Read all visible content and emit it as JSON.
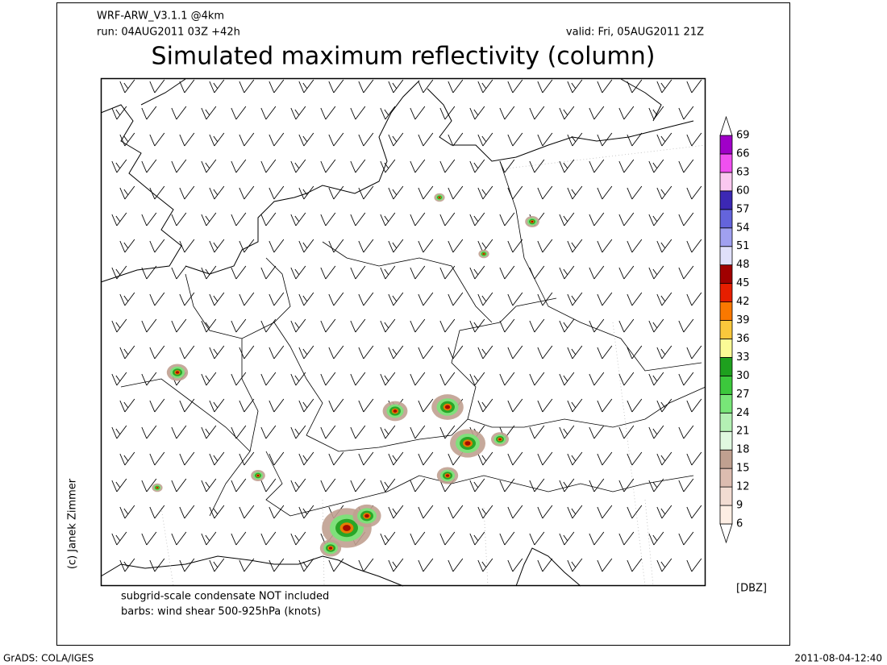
{
  "header": {
    "model": "WRF-ARW_V3.1.1 @4km",
    "run": "run: 04AUG2011 03Z +42h",
    "valid": "valid: Fri, 05AUG2011 21Z",
    "title": "Simulated maximum reflectivity (column)"
  },
  "notes": [
    "subgrid-scale condensate NOT included",
    "barbs: wind shear 500-925hPa (knots)"
  ],
  "credit": "(c) Janek Zimmer",
  "colorbar": {
    "unit": "[DBZ]",
    "levels": [
      6,
      9,
      12,
      15,
      18,
      21,
      24,
      27,
      30,
      33,
      36,
      39,
      42,
      45,
      48,
      51,
      54,
      57,
      60,
      63,
      66,
      69
    ],
    "colors": [
      "#ffffff",
      "#fdeee4",
      "#f2dcd2",
      "#dcbcb0",
      "#c0a090",
      "#e0f8e0",
      "#b4f0b4",
      "#78e678",
      "#3cc83c",
      "#1ea01e",
      "#fafa96",
      "#fac83c",
      "#fa7800",
      "#e61e00",
      "#a00000",
      "#e0e0fa",
      "#a0a0f0",
      "#6464dc",
      "#3c28b4",
      "#fac8f0",
      "#f050f0",
      "#a000c8",
      "#ffffff"
    ]
  },
  "footer": {
    "left": "GrADS: COLA/IGES",
    "right": "2011-08-04-12:40"
  }
}
